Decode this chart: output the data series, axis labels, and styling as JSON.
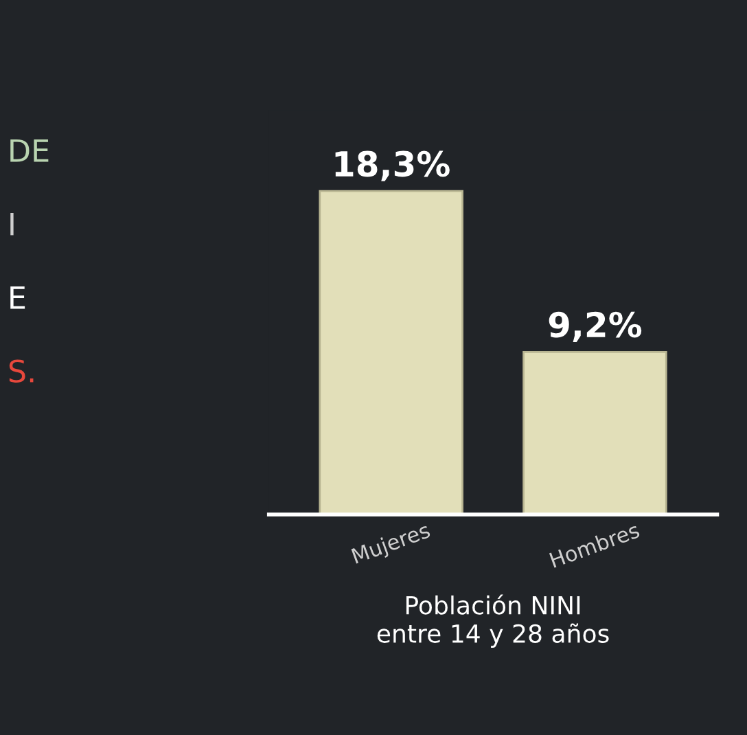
{
  "chart_data": {
    "type": "bar",
    "categories": [
      "Mujeres",
      "Hombres"
    ],
    "values": [
      18.3,
      9.2
    ],
    "value_labels": [
      "18,3%",
      "9,2%"
    ],
    "color": "#e2dfb9",
    "xlabel": "Población NINI\nentre 14 y 28 años",
    "annotations": [
      "DE",
      "I",
      "E",
      "S."
    ],
    "grid": false,
    "legend": false
  }
}
